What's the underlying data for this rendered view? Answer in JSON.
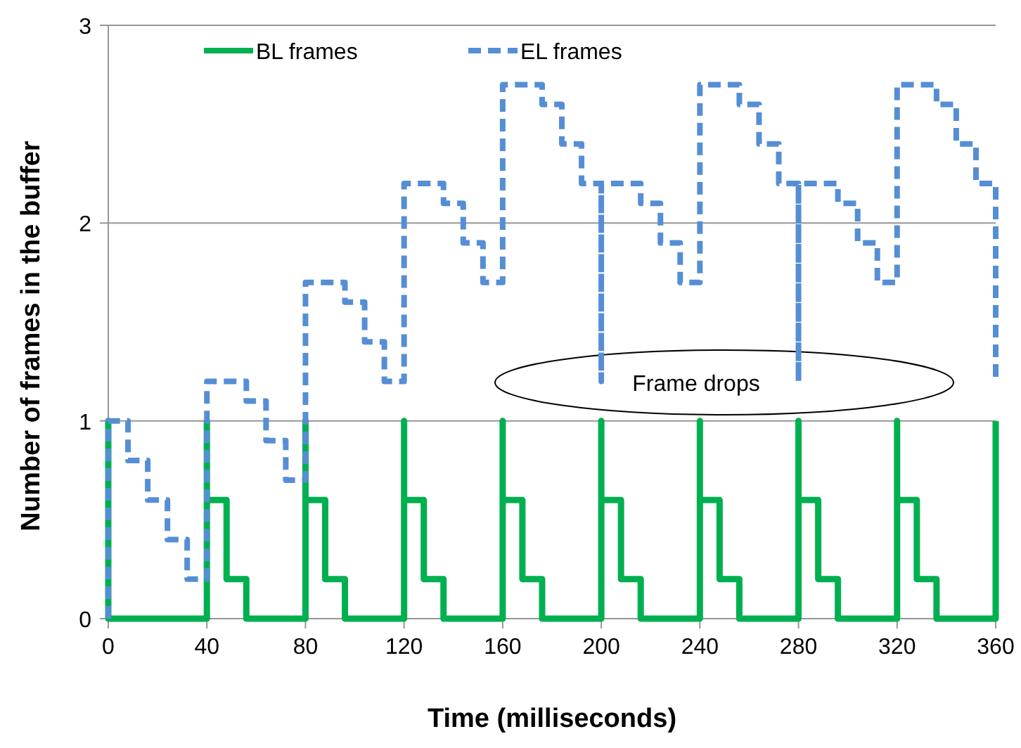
{
  "chart_data": {
    "type": "line",
    "xlabel": "Time (milliseconds)",
    "ylabel": "Number of frames in the buffer",
    "xlim": [
      0,
      360
    ],
    "xticks": [
      0,
      40,
      80,
      120,
      160,
      200,
      240,
      280,
      320,
      360
    ],
    "ylim": [
      0,
      3
    ],
    "yticks": [
      0,
      1,
      2,
      3
    ],
    "grid": "y",
    "legend": "top",
    "annotations": [
      "Frame drops"
    ],
    "series": [
      {
        "name": "BL frames",
        "color": "#00b050",
        "line_style": "solid",
        "x": [
          0,
          0,
          0,
          40,
          40,
          40,
          48,
          48,
          56,
          56,
          80,
          80,
          80,
          88,
          88,
          96,
          96,
          120,
          120,
          120,
          128,
          128,
          136,
          136,
          160,
          160,
          160,
          168,
          168,
          176,
          176,
          200,
          200,
          200,
          208,
          208,
          216,
          216,
          240,
          240,
          240,
          248,
          248,
          256,
          256,
          280,
          280,
          280,
          288,
          288,
          296,
          296,
          320,
          320,
          320,
          328,
          328,
          336,
          336,
          360,
          360
        ],
        "values": [
          0,
          1,
          0,
          0,
          1,
          0.6,
          0.6,
          0.2,
          0.2,
          0,
          0,
          1,
          0.6,
          0.6,
          0.2,
          0.2,
          0,
          0,
          1,
          0.6,
          0.6,
          0.2,
          0.2,
          0,
          0,
          1,
          0.6,
          0.6,
          0.2,
          0.2,
          0,
          0,
          1,
          0.6,
          0.6,
          0.2,
          0.2,
          0,
          0,
          1,
          0.6,
          0.6,
          0.2,
          0.2,
          0,
          0,
          1,
          0.6,
          0.6,
          0.2,
          0.2,
          0,
          0,
          1,
          0.6,
          0.6,
          0.2,
          0.2,
          0,
          0,
          1
        ]
      },
      {
        "name": "EL frames",
        "color": "#558ed5",
        "line_style": "dashed",
        "x": [
          0,
          0,
          8,
          8,
          16,
          16,
          24,
          24,
          32,
          32,
          40,
          40,
          56,
          56,
          64,
          64,
          72,
          72,
          80,
          80,
          96,
          96,
          104,
          104,
          112,
          112,
          120,
          120,
          136,
          136,
          144,
          144,
          152,
          152,
          160,
          160,
          176,
          176,
          184,
          184,
          192,
          192,
          200,
          200,
          200,
          216,
          216,
          224,
          224,
          232,
          232,
          240,
          240,
          256,
          256,
          264,
          264,
          272,
          272,
          280,
          280,
          280,
          296,
          296,
          304,
          304,
          312,
          312,
          320,
          320,
          336,
          336,
          344,
          344,
          352,
          352,
          360,
          360
        ],
        "values": [
          0,
          1,
          1,
          0.8,
          0.8,
          0.6,
          0.6,
          0.4,
          0.4,
          0.2,
          0.2,
          1.2,
          1.2,
          1.1,
          1.1,
          0.9,
          0.9,
          0.7,
          0.7,
          1.7,
          1.7,
          1.6,
          1.6,
          1.4,
          1.4,
          1.2,
          1.2,
          2.2,
          2.2,
          2.1,
          2.1,
          1.9,
          1.9,
          1.7,
          1.7,
          2.7,
          2.7,
          2.6,
          2.6,
          2.4,
          2.4,
          2.2,
          2.2,
          1.2,
          2.2,
          2.2,
          2.1,
          2.1,
          1.9,
          1.9,
          1.7,
          1.7,
          2.7,
          2.7,
          2.6,
          2.6,
          2.4,
          2.4,
          2.2,
          2.2,
          1.2,
          2.2,
          2.2,
          2.1,
          2.1,
          1.9,
          1.9,
          1.7,
          1.7,
          2.7,
          2.7,
          2.6,
          2.6,
          2.4,
          2.4,
          2.2,
          2.2,
          1.2
        ]
      }
    ]
  }
}
